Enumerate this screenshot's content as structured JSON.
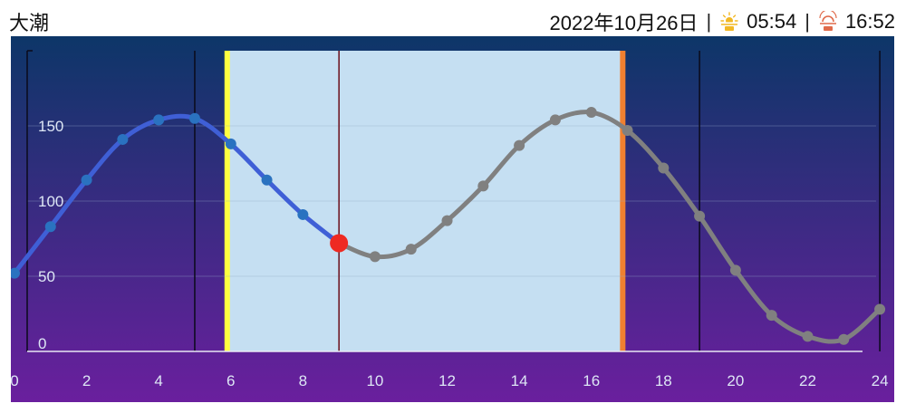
{
  "header": {
    "tide_type": "大潮",
    "date": "2022年10月26日",
    "separator": "|",
    "sunrise_icon": "sunrise-icon",
    "sunrise_time": "05:54",
    "sunset_icon": "sunset-icon",
    "sunset_time": "16:52"
  },
  "colors": {
    "bg_top": "#0d3668",
    "bg_bottom": "#6a1f9e",
    "daylight": "#c5dff2",
    "sunrise_line": "#ffff40",
    "sunset_line": "#f08030",
    "past_curve": "#3f5fd6",
    "past_point": "#2a72c0",
    "future_curve": "#808080",
    "current_point": "#ee2a22",
    "current_line": "#6b0f1a"
  },
  "chart_data": {
    "type": "line",
    "x": [
      0,
      1,
      2,
      3,
      4,
      5,
      6,
      7,
      8,
      9,
      10,
      11,
      12,
      13,
      14,
      15,
      16,
      17,
      18,
      19,
      20,
      21,
      22,
      23,
      24
    ],
    "series": [
      {
        "values": [
          52,
          83,
          114,
          141,
          154,
          155,
          138,
          114,
          91,
          72,
          63,
          68,
          87,
          110,
          137,
          154,
          159,
          147,
          122,
          90,
          54,
          24,
          10,
          8,
          28
        ]
      }
    ],
    "current": {
      "x": 9,
      "y": 72
    },
    "sunrise_x": 5.9,
    "sunset_x": 16.87,
    "xlim": [
      -0.1,
      24.4
    ],
    "ylim": [
      0,
      200
    ],
    "x_ticks": [
      "0",
      "2",
      "4",
      "6",
      "8",
      "10",
      "12",
      "14",
      "16",
      "18",
      "20",
      "22",
      "24"
    ],
    "y_ticks": [
      "0",
      "50",
      "100",
      "150"
    ],
    "dark_vlines_x": [
      5,
      19,
      24
    ],
    "grid": true
  }
}
